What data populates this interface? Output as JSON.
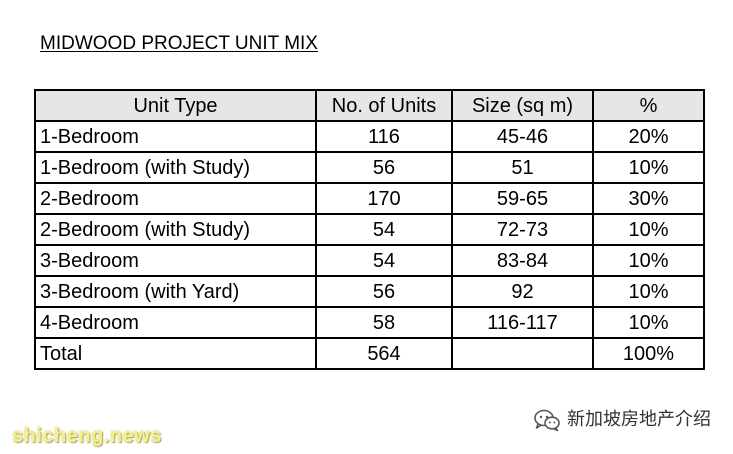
{
  "document": {
    "title": "MIDWOOD PROJECT UNIT MIX"
  },
  "table": {
    "headers": {
      "unit_type": "Unit Type",
      "units": "No. of Units",
      "size": "Size (sq m)",
      "pct": "%"
    },
    "rows": [
      {
        "unit_type": "1-Bedroom",
        "units": "116",
        "size": "45-46",
        "pct": "20%"
      },
      {
        "unit_type": "1-Bedroom (with Study)",
        "units": "56",
        "size": "51",
        "pct": "10%"
      },
      {
        "unit_type": "2-Bedroom",
        "units": "170",
        "size": "59-65",
        "pct": "30%"
      },
      {
        "unit_type": "2-Bedroom (with Study)",
        "units": "54",
        "size": "72-73",
        "pct": "10%"
      },
      {
        "unit_type": "3-Bedroom",
        "units": "54",
        "size": "83-84",
        "pct": "10%"
      },
      {
        "unit_type": "3-Bedroom (with Yard)",
        "units": "56",
        "size": "92",
        "pct": "10%"
      },
      {
        "unit_type": "4-Bedroom",
        "units": "58",
        "size": "116-117",
        "pct": "10%"
      }
    ],
    "total": {
      "unit_type": "Total",
      "units": "564",
      "size": "",
      "pct": "100%"
    }
  },
  "watermarks": {
    "left_text": "shicheng.news",
    "right_text": "新加坡房地产介绍",
    "right_icon": "wechat-icon",
    "left_color": "#f6f08a"
  }
}
